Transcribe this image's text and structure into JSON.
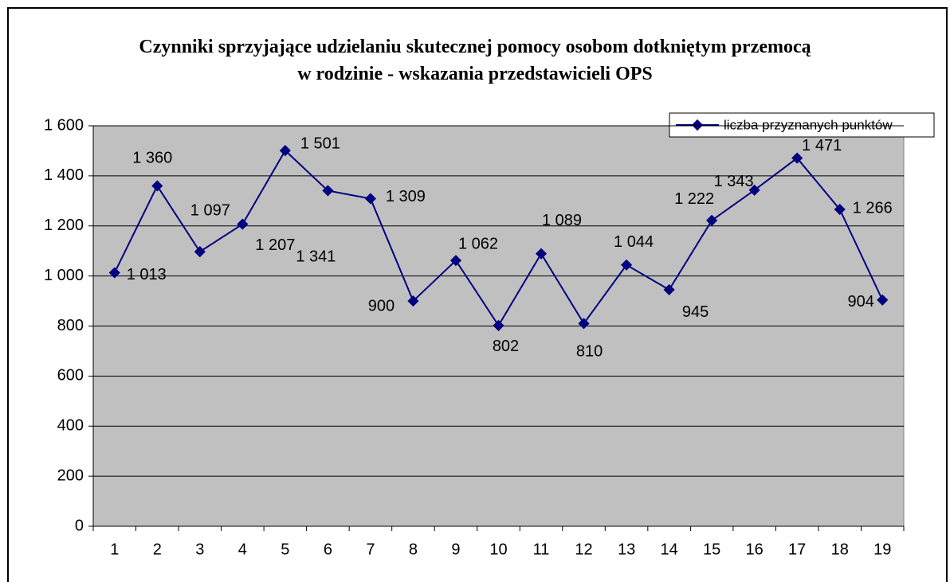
{
  "chart_data": {
    "type": "line",
    "title": "Czynniki sprzyjające udzielaniu skutecznej pomocy osobom dotkniętym przemocą w rodzinie - wskazania przedstawicieli OPS",
    "categories": [
      "1",
      "2",
      "3",
      "4",
      "5",
      "6",
      "7",
      "8",
      "9",
      "10",
      "11",
      "12",
      "13",
      "14",
      "15",
      "16",
      "17",
      "18",
      "19"
    ],
    "series": [
      {
        "name": "liczba przyznanych punktów",
        "color": "#000080",
        "values": [
          1013,
          1360,
          1097,
          1207,
          1501,
          1341,
          1309,
          900,
          1062,
          802,
          1089,
          810,
          1044,
          945,
          1222,
          1343,
          1471,
          1266,
          904
        ],
        "value_labels": [
          "1 013",
          "1 360",
          "1 097",
          "1 207",
          "1 501",
          "1 341",
          "1 309",
          "900",
          "1 062",
          "802",
          "1 089",
          "810",
          "1 044",
          "945",
          "1 222",
          "1 343",
          "1 471",
          "1 266",
          "904"
        ]
      }
    ],
    "ylim": [
      0,
      1600
    ],
    "yticks": [
      0,
      200,
      400,
      600,
      800,
      {
        "value": 1000,
        "label": "1 000"
      },
      {
        "value": 1200,
        "label": "1 200"
      },
      {
        "value": 1400,
        "label": "1 400"
      },
      {
        "value": 1600,
        "label": "1 600"
      }
    ],
    "grid": true,
    "legend": "upper right",
    "background": "#c0c0c0"
  }
}
